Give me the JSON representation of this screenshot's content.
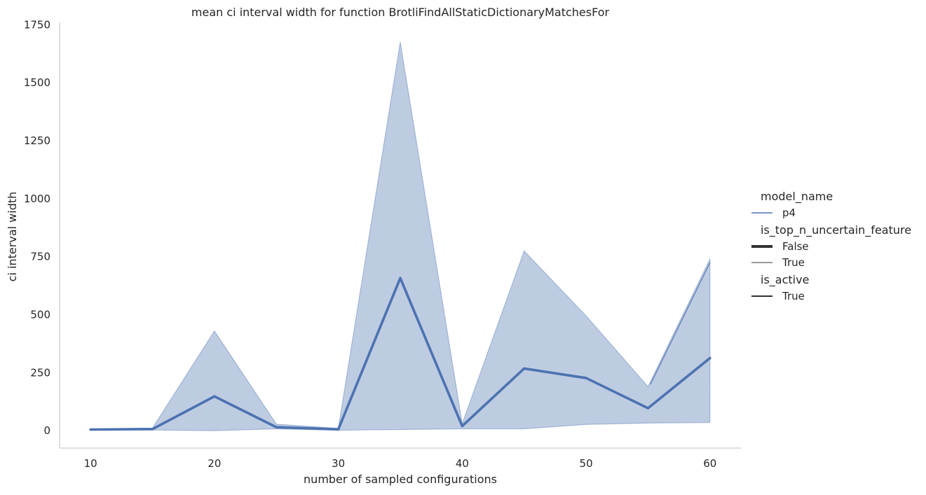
{
  "chart_data": {
    "type": "line",
    "title": "mean ci interval width for function BrotliFindAllStaticDictionaryMatchesFor",
    "xlabel": "number of sampled configurations",
    "ylabel": "ci interval width",
    "xlim": [
      7.5,
      62.5
    ],
    "ylim": [
      -75,
      1760
    ],
    "xticks": [
      10,
      20,
      30,
      40,
      50,
      60
    ],
    "yticks": [
      0,
      250,
      500,
      750,
      1000,
      1250,
      1500,
      1750
    ],
    "grid": false,
    "legend_position": "right",
    "series": [
      {
        "name": "p4",
        "style_group": "False",
        "x": [
          10,
          15,
          20,
          25,
          30,
          35,
          40,
          45,
          50,
          55,
          60
        ],
        "y": [
          5,
          7,
          148,
          15,
          6,
          658,
          20,
          268,
          227,
          97,
          313
        ],
        "ci_lower": [
          3,
          3,
          0,
          8,
          2,
          5,
          8,
          8,
          27,
          33,
          35
        ],
        "ci_upper": [
          7,
          11,
          430,
          28,
          10,
          1675,
          30,
          775,
          495,
          190,
          740
        ]
      },
      {
        "name": "p4",
        "style_group": "True",
        "x": [
          60
        ],
        "y": [
          725
        ],
        "ci_lower": [
          725
        ],
        "ci_upper": [
          725
        ]
      }
    ],
    "colors": {
      "line": "#4c72b0",
      "band": "#4c72b0",
      "axis": "#cccccc"
    },
    "legend": [
      {
        "kind": "title",
        "text": "model_name"
      },
      {
        "kind": "entry",
        "text": "p4",
        "style": "color"
      },
      {
        "kind": "title",
        "text": "is_top_n_uncertain_feature"
      },
      {
        "kind": "entry",
        "text": "False",
        "style": "thick"
      },
      {
        "kind": "entry",
        "text": "True",
        "style": "thin"
      },
      {
        "kind": "title",
        "text": "is_active"
      },
      {
        "kind": "entry",
        "text": "True",
        "style": "medium"
      }
    ]
  }
}
